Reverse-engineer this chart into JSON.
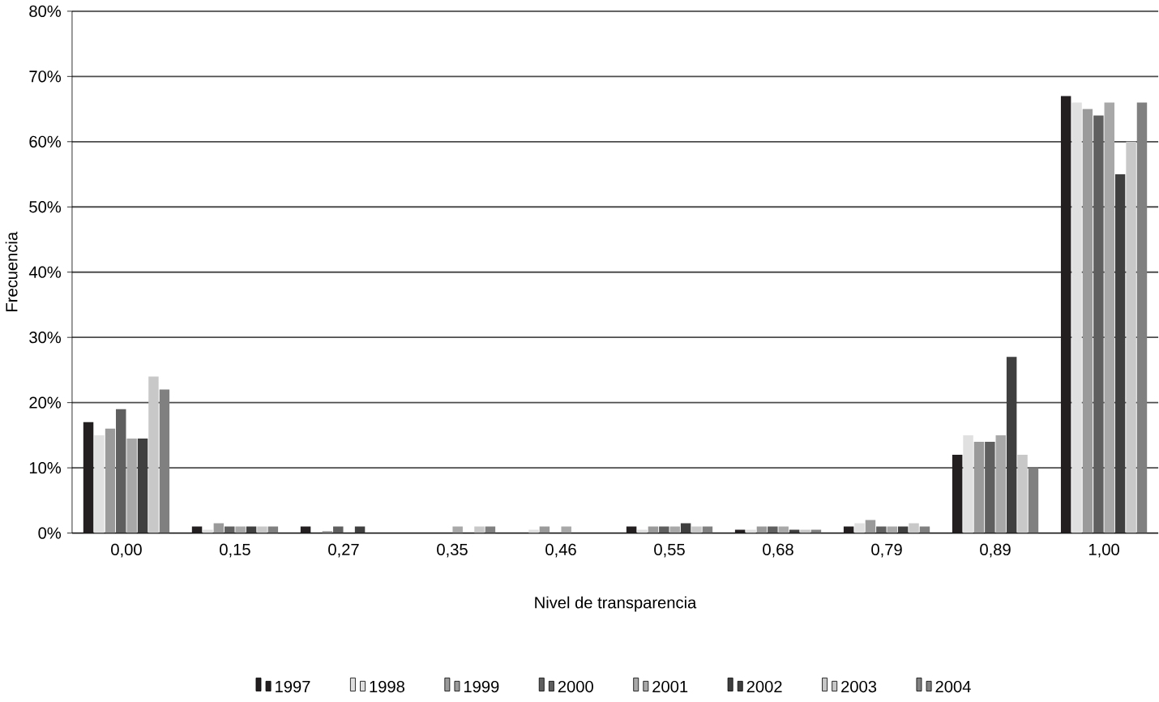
{
  "chart_data": {
    "type": "bar",
    "xlabel": "Nivel de transparencia",
    "ylabel": "Frecuencia",
    "categories": [
      "0,00",
      "0,15",
      "0,27",
      "0,35",
      "0,46",
      "0,55",
      "0,68",
      "0,79",
      "0,89",
      "1,00"
    ],
    "series": [
      {
        "name": "1997",
        "color": "#231f20",
        "values": [
          17,
          1,
          1,
          0,
          0,
          1,
          0.5,
          1,
          12,
          67
        ]
      },
      {
        "name": "1998",
        "color": "#e0e0e0",
        "values": [
          15,
          0.5,
          0,
          0,
          0.5,
          0.5,
          0.5,
          1.5,
          15,
          66
        ]
      },
      {
        "name": "1999",
        "color": "#9a9a9a",
        "values": [
          16,
          1.5,
          0.3,
          0,
          1,
          1,
          1,
          2,
          14,
          65
        ]
      },
      {
        "name": "2000",
        "color": "#5f5f5f",
        "values": [
          19,
          1,
          1,
          0,
          0,
          1,
          1,
          1,
          14,
          64
        ]
      },
      {
        "name": "2001",
        "color": "#a8a8a8",
        "values": [
          14.5,
          1,
          0,
          1,
          1,
          1,
          1,
          1,
          15,
          66
        ]
      },
      {
        "name": "2002",
        "color": "#3f3f3f",
        "values": [
          14.5,
          1,
          1,
          0,
          0,
          1.5,
          0.5,
          1,
          27,
          55
        ]
      },
      {
        "name": "2003",
        "color": "#c8c8c8",
        "values": [
          24,
          1,
          0,
          1,
          0,
          1,
          0.5,
          1.5,
          12,
          60
        ]
      },
      {
        "name": "2004",
        "color": "#808080",
        "values": [
          22,
          1,
          0,
          1,
          0,
          1,
          0.5,
          1,
          10,
          66
        ]
      }
    ],
    "ylim": [
      0,
      80
    ],
    "yticks": [
      {
        "value": 0,
        "label": "0%"
      },
      {
        "value": 10,
        "label": "10%"
      },
      {
        "value": 20,
        "label": "20%"
      },
      {
        "value": 30,
        "label": "30%"
      },
      {
        "value": 40,
        "label": "40%"
      },
      {
        "value": 50,
        "label": "50%"
      },
      {
        "value": 60,
        "label": "60%"
      },
      {
        "value": 70,
        "label": "70%"
      },
      {
        "value": 80,
        "label": "80%"
      }
    ],
    "grid": "y",
    "legend": "bottom"
  }
}
